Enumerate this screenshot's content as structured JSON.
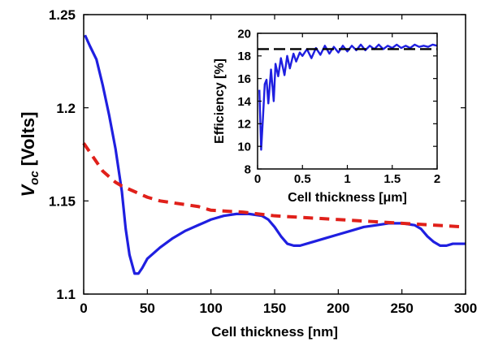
{
  "chart_data": [
    {
      "type": "line",
      "xlabel": "Cell thickness [nm]",
      "ylabel_main": "V",
      "ylabel_sub": "oc",
      "ylabel_unit": "[Volts]",
      "xlim": [
        0,
        300
      ],
      "ylim": [
        1.1,
        1.25
      ],
      "xticks": [
        0,
        50,
        100,
        150,
        200,
        250,
        300
      ],
      "yticks": [
        1.1,
        1.15,
        1.2,
        1.25
      ],
      "xtick_labels": [
        "0",
        "50",
        "100",
        "150",
        "200",
        "250",
        "300"
      ],
      "ytick_labels": [
        "1.1",
        "1.15",
        "1.2",
        "1.25"
      ],
      "grid": false,
      "series": [
        {
          "color": "#1f1fe0",
          "style": "solid",
          "x": [
            1,
            5,
            10,
            15,
            20,
            25,
            30,
            33,
            36,
            40,
            43,
            46,
            50,
            55,
            60,
            70,
            80,
            90,
            100,
            110,
            120,
            130,
            140,
            145,
            150,
            155,
            160,
            165,
            170,
            180,
            190,
            200,
            210,
            220,
            230,
            240,
            250,
            260,
            265,
            270,
            275,
            280,
            285,
            290,
            295,
            300
          ],
          "y": [
            1.239,
            1.233,
            1.226,
            1.212,
            1.196,
            1.178,
            1.155,
            1.135,
            1.121,
            1.111,
            1.111,
            1.114,
            1.119,
            1.122,
            1.125,
            1.13,
            1.134,
            1.137,
            1.14,
            1.142,
            1.143,
            1.143,
            1.142,
            1.14,
            1.136,
            1.131,
            1.127,
            1.126,
            1.126,
            1.128,
            1.13,
            1.132,
            1.134,
            1.136,
            1.137,
            1.138,
            1.138,
            1.137,
            1.135,
            1.131,
            1.128,
            1.126,
            1.126,
            1.127,
            1.127,
            1.127
          ]
        },
        {
          "color": "#e0201a",
          "style": "dashed",
          "x": [
            0,
            5,
            10,
            15,
            20,
            25,
            30,
            40,
            50,
            60,
            70,
            80,
            90,
            100,
            125,
            150,
            175,
            200,
            225,
            250,
            275,
            300
          ],
          "y": [
            1.181,
            1.176,
            1.171,
            1.166,
            1.163,
            1.16,
            1.158,
            1.155,
            1.152,
            1.15,
            1.149,
            1.148,
            1.147,
            1.145,
            1.144,
            1.142,
            1.141,
            1.14,
            1.139,
            1.138,
            1.137,
            1.136
          ]
        }
      ]
    },
    {
      "type": "line",
      "xlabel": "Cell thickness [μm]",
      "ylabel": "Efficiency [%]",
      "xlim": [
        0,
        2
      ],
      "ylim": [
        8,
        20
      ],
      "xticks": [
        0,
        0.5,
        1,
        1.5,
        2
      ],
      "yticks": [
        8,
        10,
        12,
        14,
        16,
        18,
        20
      ],
      "xtick_labels": [
        "0",
        "0.5",
        "1",
        "1.5",
        "2"
      ],
      "ytick_labels": [
        "8",
        "10",
        "12",
        "14",
        "16",
        "18",
        "20"
      ],
      "grid": false,
      "series": [
        {
          "color": "#1f1fe0",
          "style": "solid",
          "x": [
            0.02,
            0.04,
            0.06,
            0.08,
            0.1,
            0.12,
            0.15,
            0.18,
            0.2,
            0.23,
            0.26,
            0.3,
            0.33,
            0.36,
            0.4,
            0.43,
            0.47,
            0.5,
            0.55,
            0.6,
            0.65,
            0.7,
            0.75,
            0.8,
            0.85,
            0.9,
            0.95,
            1.0,
            1.05,
            1.1,
            1.15,
            1.2,
            1.25,
            1.3,
            1.35,
            1.4,
            1.45,
            1.5,
            1.55,
            1.6,
            1.65,
            1.7,
            1.75,
            1.8,
            1.85,
            1.9,
            1.95,
            2.0
          ],
          "y": [
            15.0,
            9.7,
            12.5,
            15.5,
            15.9,
            13.8,
            16.8,
            14.0,
            17.3,
            16.2,
            17.8,
            16.3,
            18.0,
            16.9,
            18.2,
            17.5,
            18.3,
            18.0,
            18.6,
            17.8,
            18.7,
            18.1,
            18.9,
            18.2,
            18.8,
            18.3,
            18.9,
            18.4,
            18.9,
            18.5,
            19.0,
            18.5,
            18.9,
            18.6,
            19.0,
            18.6,
            18.9,
            18.7,
            19.0,
            18.7,
            18.9,
            18.7,
            19.0,
            18.8,
            18.9,
            18.8,
            19.0,
            18.9
          ]
        },
        {
          "color": "#000000",
          "style": "dashed",
          "x": [
            0,
            2
          ],
          "y": [
            18.6,
            18.6
          ]
        }
      ]
    }
  ]
}
